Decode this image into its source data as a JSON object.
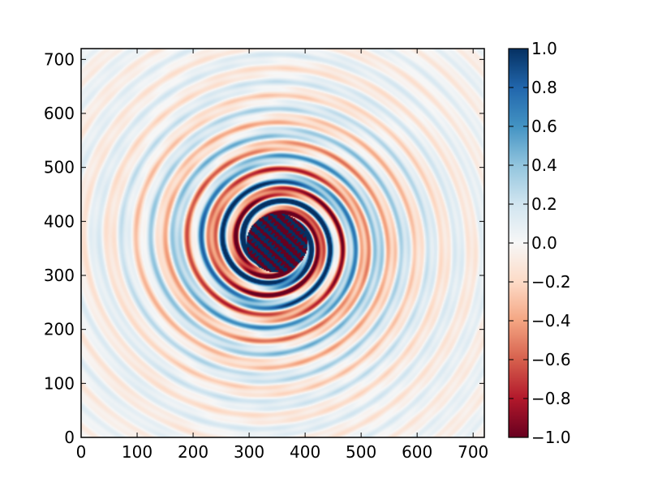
{
  "chart_data": {
    "type": "heatmap",
    "title": "",
    "xlabel": "",
    "ylabel": "",
    "xlim": [
      0,
      720
    ],
    "ylim": [
      0,
      720
    ],
    "x_ticks": [
      0,
      100,
      200,
      300,
      400,
      500,
      600,
      700
    ],
    "y_ticks": [
      0,
      100,
      200,
      300,
      400,
      500,
      600,
      700
    ],
    "x_tick_labels": [
      "0",
      "100",
      "200",
      "300",
      "400",
      "500",
      "600",
      "700"
    ],
    "y_tick_labels": [
      "0",
      "100",
      "200",
      "300",
      "400",
      "500",
      "600",
      "700"
    ],
    "grid": false,
    "colormap": "RdBu",
    "vmin": -1.0,
    "vmax": 1.0,
    "colorbar": {
      "ticks": [
        1.0,
        0.8,
        0.6,
        0.4,
        0.2,
        0.0,
        -0.2,
        -0.4,
        -0.6,
        -0.8,
        -1.0
      ],
      "labels": [
        "1.0",
        "0.8",
        "0.6",
        "0.4",
        "0.2",
        "0.0",
        "−0.2",
        "−0.4",
        "−0.6",
        "−0.8",
        "−1.0"
      ]
    },
    "field": {
      "description_of_pattern": "spiral vortex",
      "center": [
        350,
        360
      ],
      "core_radius": 55
    },
    "colors": {
      "min": "#67001f",
      "low": "#d6604d",
      "mid": "#f7f7f7",
      "high": "#4393c3",
      "max": "#053061"
    }
  }
}
